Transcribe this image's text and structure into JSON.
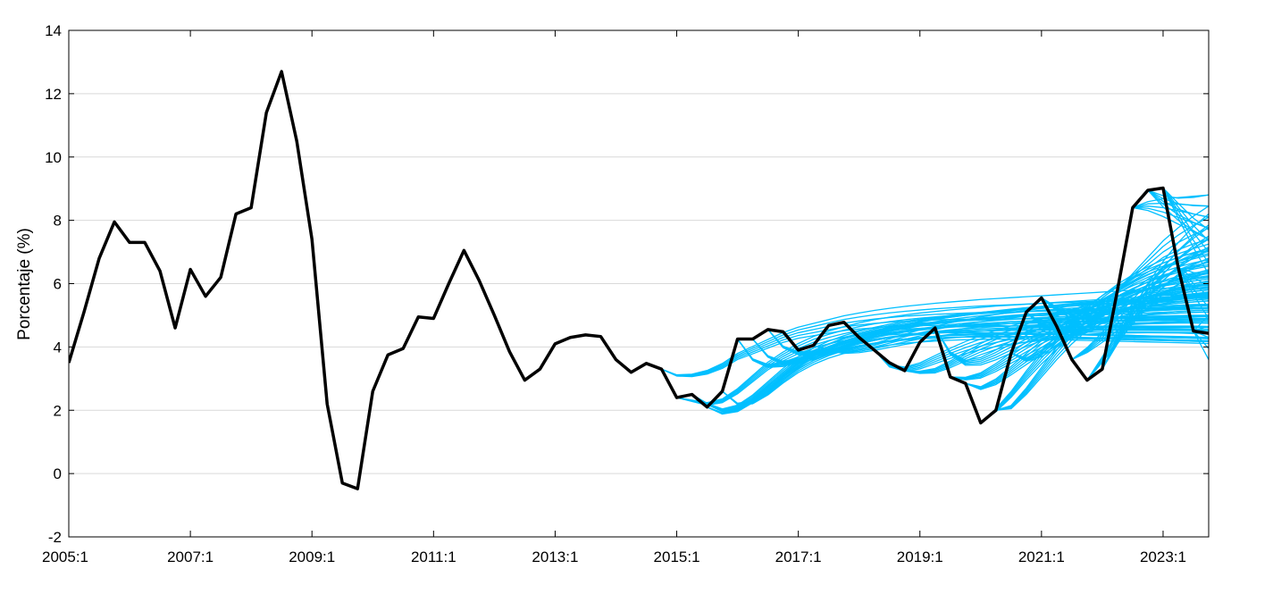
{
  "chart_data": {
    "type": "line",
    "title": "",
    "xlabel": "",
    "ylabel": "Porcentaje (%)",
    "xlim": [
      "2005:1",
      "2023:4"
    ],
    "ylim": [
      -2,
      14
    ],
    "grid": {
      "horizontal": true,
      "vertical": false
    },
    "x_ticks": [
      "2005:1",
      "2007:1",
      "2009:1",
      "2011:1",
      "2013:1",
      "2015:1",
      "2017:1",
      "2019:1",
      "2021:1",
      "2023:1"
    ],
    "y_ticks": [
      -2,
      0,
      2,
      4,
      6,
      8,
      10,
      12,
      14
    ],
    "colors": {
      "actual": "#000000",
      "forecasts": "#00BFFF",
      "grid": "#D9D9D9",
      "axes": "#000000"
    },
    "series": [
      {
        "style": "actual",
        "x": [
          "2005:1",
          "2005:2",
          "2005:3",
          "2005:4",
          "2006:1",
          "2006:2",
          "2006:3",
          "2006:4",
          "2007:1",
          "2007:2",
          "2007:3",
          "2007:4",
          "2008:1",
          "2008:2",
          "2008:3",
          "2008:4",
          "2009:1",
          "2009:2",
          "2009:3",
          "2009:4",
          "2010:1",
          "2010:2",
          "2010:3",
          "2010:4",
          "2011:1",
          "2011:2",
          "2011:3",
          "2011:4",
          "2012:1",
          "2012:2",
          "2012:3",
          "2012:4",
          "2013:1",
          "2013:2",
          "2013:3",
          "2013:4",
          "2014:1",
          "2014:2",
          "2014:3",
          "2014:4",
          "2015:1",
          "2015:2",
          "2015:3",
          "2015:4",
          "2016:1",
          "2016:2",
          "2016:3",
          "2016:4",
          "2017:1",
          "2017:2",
          "2017:3",
          "2017:4",
          "2018:1",
          "2018:2",
          "2018:3",
          "2018:4",
          "2019:1",
          "2019:2",
          "2019:3",
          "2019:4",
          "2020:1",
          "2020:2",
          "2020:3",
          "2020:4",
          "2021:1",
          "2021:2",
          "2021:3",
          "2021:4",
          "2022:1",
          "2022:2",
          "2022:3",
          "2022:4",
          "2023:1",
          "2023:2",
          "2023:3",
          "2023:4"
        ],
        "values": [
          3.5,
          5.1,
          6.8,
          7.95,
          7.3,
          7.3,
          6.4,
          4.6,
          6.45,
          5.6,
          6.2,
          8.2,
          8.4,
          11.4,
          12.7,
          10.5,
          7.4,
          2.2,
          -0.3,
          -0.48,
          2.6,
          3.75,
          3.95,
          4.95,
          4.9,
          6.0,
          7.05,
          6.1,
          5.0,
          3.85,
          2.95,
          3.3,
          4.1,
          4.3,
          4.38,
          4.33,
          3.6,
          3.2,
          3.48,
          3.3,
          2.4,
          2.5,
          2.1,
          2.6,
          4.25,
          4.25,
          4.55,
          4.48,
          3.9,
          4.05,
          4.68,
          4.78,
          4.3,
          3.9,
          3.5,
          3.25,
          4.15,
          4.6,
          3.05,
          2.85,
          1.6,
          2.0,
          3.8,
          5.1,
          5.55,
          4.65,
          3.6,
          2.95,
          3.3,
          5.8,
          8.4,
          8.95,
          9.02,
          6.5,
          4.5,
          4.43
        ]
      }
    ],
    "forecast_band": {
      "description_series": "forecast paths from 2015:1 onward",
      "paths": [
        {
          "start": "2014:4",
          "values": [
            3.3,
            3.1,
            3.1,
            3.2,
            3.4,
            3.7,
            3.9,
            4.1,
            4.3,
            4.45,
            4.55,
            4.65,
            4.75,
            4.82,
            4.88,
            4.93,
            4.97,
            5.0,
            5.03,
            5.05,
            5.07,
            5.09,
            5.1,
            5.11,
            5.12,
            5.13,
            5.14,
            5.15,
            5.16,
            5.17,
            5.18,
            5.19,
            5.2,
            5.21,
            5.22,
            5.23,
            5.24
          ]
        },
        {
          "start": "2015:1",
          "values": [
            2.4,
            2.3,
            2.2,
            2.3,
            2.6,
            3.0,
            3.4,
            3.7,
            3.95,
            4.15,
            4.3,
            4.42,
            4.52,
            4.6,
            4.66,
            4.71,
            4.75,
            4.78,
            4.81,
            4.83,
            4.85,
            4.87,
            4.88,
            4.89,
            4.9,
            4.91,
            4.92,
            4.93,
            4.94,
            4.95,
            4.96,
            4.97,
            4.98,
            4.99,
            5.0,
            5.0
          ]
        },
        {
          "start": "2015:2",
          "values": [
            2.5,
            2.2,
            2.0,
            2.1,
            2.4,
            2.8,
            3.2,
            3.55,
            3.8,
            4.0,
            4.15,
            4.27,
            4.37,
            4.45,
            4.52,
            4.57,
            4.61,
            4.65,
            4.68,
            4.7,
            4.72,
            4.74,
            4.75,
            4.76,
            4.77,
            4.78,
            4.79,
            4.8,
            4.81,
            4.82,
            4.83,
            4.84,
            4.85,
            4.86,
            4.87
          ]
        },
        {
          "start": "2015:3",
          "values": [
            2.1,
            1.9,
            2.0,
            2.3,
            2.7,
            3.1,
            3.45,
            3.72,
            3.93,
            4.1,
            4.23,
            4.33,
            4.42,
            4.49,
            4.55,
            4.6,
            4.64,
            4.67,
            4.7,
            4.72,
            4.74,
            4.75,
            4.76,
            4.77,
            4.78,
            4.79,
            4.8,
            4.81,
            4.82,
            4.83,
            4.84,
            4.85,
            4.86,
            4.87
          ]
        },
        {
          "start": "2015:4",
          "values": [
            2.6,
            2.2,
            2.25,
            2.55,
            2.95,
            3.3,
            3.58,
            3.8,
            3.97,
            4.1,
            4.21,
            4.3,
            4.38,
            4.44,
            4.49,
            4.54,
            4.58,
            4.61,
            4.64,
            4.66,
            4.68,
            4.7,
            4.71,
            4.72,
            4.73,
            4.74,
            4.75,
            4.76,
            4.77,
            4.78,
            4.79,
            4.8,
            4.81
          ]
        },
        {
          "start": "2016:1",
          "values": [
            4.25,
            3.6,
            3.4,
            3.45,
            3.6,
            3.78,
            3.95,
            4.1,
            4.22,
            4.32,
            4.4,
            4.47,
            4.53,
            4.58,
            4.62,
            4.66,
            4.69,
            4.72,
            4.74,
            4.76,
            4.78,
            4.8,
            4.81,
            4.82,
            4.83,
            4.84,
            4.85,
            4.86,
            4.87,
            4.88,
            4.89,
            4.9
          ]
        },
        {
          "start": "2016:2",
          "values": [
            4.25,
            3.7,
            3.5,
            3.55,
            3.7,
            3.88,
            4.05,
            4.18,
            4.3,
            4.4,
            4.48,
            4.55,
            4.61,
            4.66,
            4.7,
            4.74,
            4.77,
            4.8,
            4.82,
            4.84,
            4.86,
            4.88,
            4.89,
            4.9,
            4.91,
            4.92,
            4.93,
            4.94,
            4.95,
            4.96,
            4.97
          ]
        },
        {
          "start": "2016:3",
          "values": [
            4.55,
            4.0,
            3.8,
            3.8,
            3.9,
            4.03,
            4.17,
            4.29,
            4.39,
            4.47,
            4.54,
            4.6,
            4.65,
            4.69,
            4.73,
            4.76,
            4.79,
            4.81,
            4.83,
            4.85,
            4.87,
            4.88,
            4.89,
            4.9,
            4.91,
            4.92,
            4.93,
            4.94,
            4.95,
            4.96
          ]
        },
        {
          "start": "2017:2",
          "values": [
            4.05,
            3.9,
            3.85,
            3.9,
            4.0,
            4.12,
            4.24,
            4.35,
            4.44,
            4.52,
            4.59,
            4.65,
            4.7,
            4.74,
            4.78,
            4.81,
            4.84,
            4.86,
            4.88,
            4.9,
            4.92,
            4.93,
            4.94,
            4.95,
            4.96,
            4.97,
            4.98
          ]
        },
        {
          "start": "2018:2",
          "values": [
            3.9,
            3.4,
            3.3,
            3.4,
            3.6,
            3.8,
            3.98,
            4.14,
            4.27,
            4.38,
            4.47,
            4.55,
            4.62,
            4.68,
            4.73,
            4.77,
            4.81,
            4.84,
            4.87,
            4.9,
            4.92,
            4.94,
            4.96
          ]
        },
        {
          "start": "2018:4",
          "values": [
            3.25,
            3.2,
            3.25,
            3.45,
            3.7,
            3.93,
            4.13,
            4.3,
            4.44,
            4.56,
            4.66,
            4.75,
            4.82,
            4.88,
            4.93,
            4.97,
            5.01,
            5.04,
            5.07,
            5.09,
            5.11
          ]
        },
        {
          "start": "2019:2",
          "values": [
            4.6,
            3.8,
            3.5,
            3.55,
            3.75,
            4.0,
            4.25,
            4.47,
            4.66,
            4.82,
            4.95,
            5.06,
            5.15,
            5.23,
            5.29,
            5.34,
            5.38,
            5.42,
            5.45
          ]
        },
        {
          "start": "2019:3",
          "values": [
            3.05,
            3.0,
            3.1,
            3.35,
            3.65,
            3.95,
            4.23,
            4.47,
            4.68,
            4.85,
            5.0,
            5.12,
            5.22,
            5.3,
            5.37,
            5.43,
            5.48,
            5.52
          ]
        },
        {
          "start": "2019:4",
          "values": [
            2.85,
            2.7,
            2.9,
            3.25,
            3.62,
            3.98,
            4.3,
            4.58,
            4.81,
            5.0,
            5.16,
            5.29,
            5.4,
            5.49,
            5.56,
            5.62,
            5.67
          ]
        },
        {
          "start": "2020:1",
          "values": [
            1.6,
            2.0,
            2.5,
            3.1,
            3.65,
            4.15,
            4.58,
            4.95,
            5.25,
            5.5,
            5.7,
            5.86,
            5.99,
            6.1,
            6.18,
            6.25
          ]
        },
        {
          "start": "2020:2",
          "values": [
            2.0,
            2.1,
            2.6,
            3.2,
            3.8,
            4.35,
            4.82,
            5.2,
            5.5,
            5.75,
            5.95,
            6.1,
            6.23,
            6.33,
            6.41
          ]
        },
        {
          "start": "2020:3",
          "values": [
            3.8,
            3.6,
            3.8,
            4.15,
            4.55,
            4.95,
            5.3,
            5.6,
            5.85,
            6.05,
            6.22,
            6.35,
            6.46,
            6.55
          ]
        },
        {
          "start": "2020:4",
          "values": [
            5.1,
            4.7,
            4.6,
            4.7,
            4.9,
            5.15,
            5.4,
            5.62,
            5.82,
            5.98,
            6.12,
            6.23,
            6.32
          ]
        },
        {
          "start": "2021:1",
          "values": [
            5.55,
            5.2,
            5.05,
            5.1,
            5.25,
            5.45,
            5.65,
            5.83,
            5.99,
            6.13,
            6.24,
            6.33
          ]
        },
        {
          "start": "2021:2",
          "values": [
            4.65,
            4.5,
            4.6,
            4.85,
            5.15,
            5.45,
            5.72,
            5.95,
            6.15,
            6.31,
            6.44
          ]
        },
        {
          "start": "2021:3",
          "values": [
            3.6,
            3.9,
            4.3,
            4.75,
            5.2,
            5.6,
            5.95,
            6.25,
            6.5,
            6.7
          ]
        },
        {
          "start": "2021:4",
          "values": [
            2.95,
            3.6,
            4.3,
            5.0,
            5.6,
            6.1,
            6.5,
            6.82,
            7.08
          ]
        },
        {
          "start": "2022:1",
          "values": [
            3.3,
            4.2,
            5.0,
            5.7,
            6.3,
            6.8,
            7.2,
            7.5
          ]
        },
        {
          "start": "2022:2",
          "values": [
            5.8,
            6.2,
            6.6,
            7.0,
            7.3,
            7.55,
            7.75
          ]
        },
        {
          "start": "2022:3",
          "values": [
            8.4,
            8.45,
            8.4,
            8.3,
            8.2,
            8.1
          ]
        },
        {
          "start": "2022:4",
          "values": [
            8.95,
            8.6,
            8.35,
            8.2,
            8.1
          ]
        },
        {
          "start": "2023:1",
          "values": [
            9.02,
            8.3,
            7.6,
            7.0
          ]
        },
        {
          "start": "2023:2",
          "values": [
            6.5,
            6.0,
            5.6
          ]
        },
        {
          "start": "2023:3",
          "values": [
            4.5,
            4.3
          ]
        }
      ]
    }
  }
}
